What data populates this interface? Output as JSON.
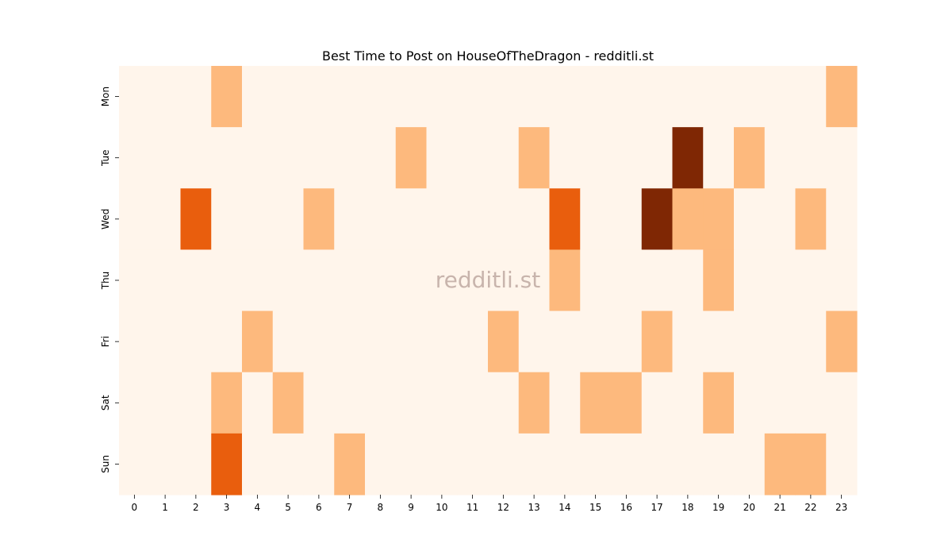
{
  "chart_data": {
    "type": "heatmap",
    "title": "Best Time to Post on HouseOfTheDragon - redditli.st",
    "watermark": "redditli.st",
    "xlabel": "",
    "ylabel": "",
    "x_categories": [
      "0",
      "1",
      "2",
      "3",
      "4",
      "5",
      "6",
      "7",
      "8",
      "9",
      "10",
      "11",
      "12",
      "13",
      "14",
      "15",
      "16",
      "17",
      "18",
      "19",
      "20",
      "21",
      "22",
      "23"
    ],
    "y_categories": [
      "Mon",
      "Tue",
      "Wed",
      "Thu",
      "Fri",
      "Sat",
      "Sun"
    ],
    "values": [
      [
        0,
        0,
        0,
        1,
        0,
        0,
        0,
        0,
        0,
        0,
        0,
        0,
        0,
        0,
        0,
        0,
        0,
        0,
        0,
        0,
        0,
        0,
        0,
        1
      ],
      [
        0,
        0,
        0,
        0,
        0,
        0,
        0,
        0,
        0,
        1,
        0,
        0,
        0,
        1,
        0,
        0,
        0,
        0,
        3,
        0,
        1,
        0,
        0,
        0
      ],
      [
        0,
        0,
        2,
        0,
        0,
        0,
        1,
        0,
        0,
        0,
        0,
        0,
        0,
        0,
        2,
        0,
        0,
        3,
        1,
        1,
        0,
        0,
        1,
        0
      ],
      [
        0,
        0,
        0,
        0,
        0,
        0,
        0,
        0,
        0,
        0,
        0,
        0,
        0,
        0,
        1,
        0,
        0,
        0,
        0,
        1,
        0,
        0,
        0,
        0
      ],
      [
        0,
        0,
        0,
        0,
        1,
        0,
        0,
        0,
        0,
        0,
        0,
        0,
        1,
        0,
        0,
        0,
        0,
        1,
        0,
        0,
        0,
        0,
        0,
        1
      ],
      [
        0,
        0,
        0,
        1,
        0,
        1,
        0,
        0,
        0,
        0,
        0,
        0,
        0,
        1,
        0,
        1,
        1,
        0,
        0,
        1,
        0,
        0,
        0,
        0
      ],
      [
        0,
        0,
        0,
        2,
        0,
        0,
        0,
        1,
        0,
        0,
        0,
        0,
        0,
        0,
        0,
        0,
        0,
        0,
        0,
        0,
        0,
        1,
        1,
        0
      ]
    ],
    "value_range": [
      0,
      3
    ],
    "colormap": "Oranges",
    "colors": [
      "#fff5eb",
      "#fdb97d",
      "#e95e0d",
      "#7f2704"
    ],
    "watermark_color": "#c8b4ac",
    "colorbar": false,
    "grid": false
  }
}
